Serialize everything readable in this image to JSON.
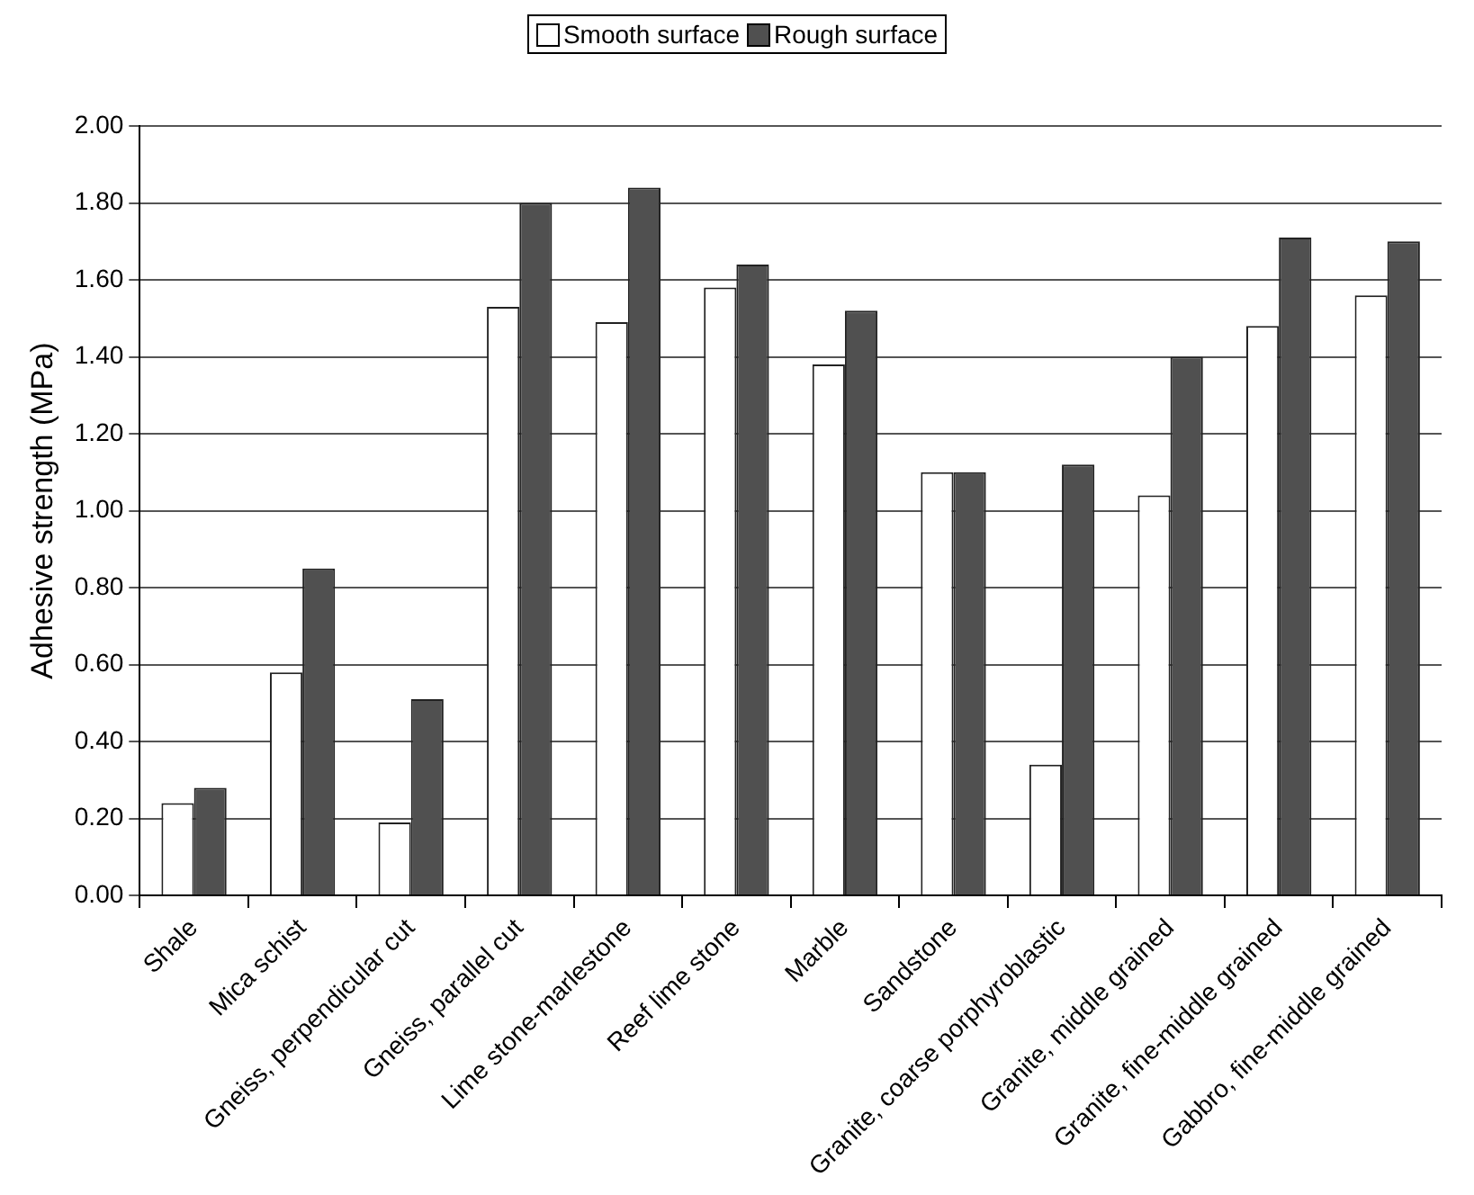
{
  "chart_data": {
    "type": "bar",
    "ylabel": "Adhesive strength (MPa)",
    "categories": [
      "Shale",
      "Mica schist",
      "Gneiss, perpendicular cut",
      "Gneiss, parallel cut",
      "Lime stone-marlestone",
      "Reef lime stone",
      "Marble",
      "Sandstone",
      "Granite, coarse porphyroblastic",
      "Granite, middle grained",
      "Granite, fine-middle grained",
      "Gabbro, fine-middle grained"
    ],
    "series": [
      {
        "name": "Smooth surface",
        "color": "#ffffff",
        "values": [
          0.24,
          0.58,
          0.19,
          1.53,
          1.49,
          1.58,
          1.38,
          1.1,
          0.34,
          1.04,
          1.48,
          1.56
        ]
      },
      {
        "name": "Rough surface",
        "color": "#505050",
        "values": [
          0.28,
          0.85,
          0.51,
          1.8,
          1.84,
          1.64,
          1.52,
          1.1,
          1.12,
          1.4,
          1.71,
          1.7
        ]
      }
    ],
    "ylim": [
      0,
      2
    ],
    "yticks": [
      {
        "value": 0,
        "label": "0.00"
      },
      {
        "value": 0.2,
        "label": "0.20"
      },
      {
        "value": 0.4,
        "label": "0.40"
      },
      {
        "value": 0.6,
        "label": "0.60"
      },
      {
        "value": 0.8,
        "label": "0.80"
      },
      {
        "value": 1,
        "label": "1.00"
      },
      {
        "value": 1.2,
        "label": "1.20"
      },
      {
        "value": 1.4,
        "label": "1.40"
      },
      {
        "value": 1.6,
        "label": "1.60"
      },
      {
        "value": 1.8,
        "label": "1.80"
      },
      {
        "value": 2,
        "label": "2.00"
      }
    ],
    "grid": "y",
    "legend": "top"
  }
}
